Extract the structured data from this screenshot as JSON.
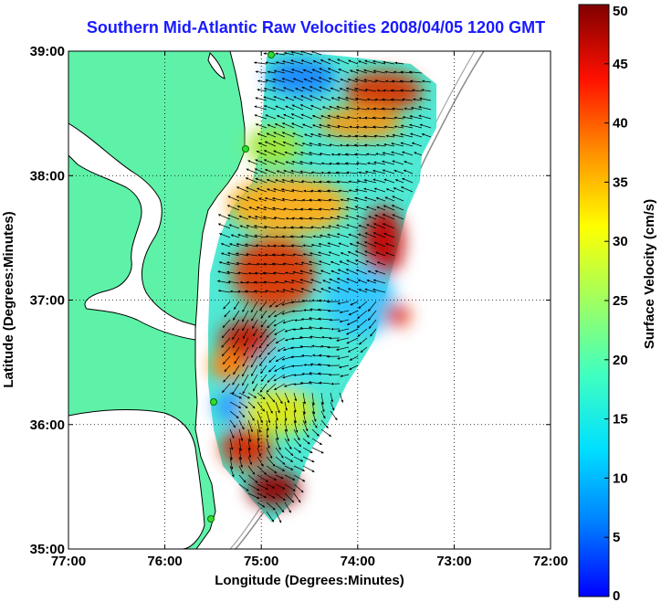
{
  "title": "Southern Mid-Atlantic Raw Velocities 2008/04/05 1200 GMT",
  "map": {
    "x_axis": {
      "label": "Longitude (Degrees:Minutes)",
      "range": [
        -77,
        -72
      ],
      "ticks": [
        {
          "value": -77,
          "label": "77:00"
        },
        {
          "value": -76,
          "label": "76:00"
        },
        {
          "value": -75,
          "label": "75:00"
        },
        {
          "value": -74,
          "label": "74:00"
        },
        {
          "value": -73,
          "label": "73:00"
        },
        {
          "value": -72,
          "label": "72:00"
        }
      ]
    },
    "y_axis": {
      "label": "Latitude (Degrees:Minutes)",
      "range": [
        35,
        39
      ],
      "ticks": [
        {
          "value": 39,
          "label": "39:00"
        },
        {
          "value": 38,
          "label": "38:00"
        },
        {
          "value": 37,
          "label": "37:00"
        },
        {
          "value": 36,
          "label": "36:00"
        },
        {
          "value": 35,
          "label": "35:00"
        }
      ]
    },
    "grid": "dotted",
    "land_color": "#5ef2a8"
  },
  "colorbar": {
    "label": "Surface Velocity (cm/s)",
    "range": [
      0,
      50
    ],
    "ticks": [
      {
        "value": 50,
        "label": "50"
      },
      {
        "value": 45,
        "label": "45"
      },
      {
        "value": 40,
        "label": "40"
      },
      {
        "value": 35,
        "label": "35"
      },
      {
        "value": 30,
        "label": "30"
      },
      {
        "value": 25,
        "label": "25"
      },
      {
        "value": 20,
        "label": "20"
      },
      {
        "value": 15,
        "label": "15"
      },
      {
        "value": 10,
        "label": "10"
      },
      {
        "value": 5,
        "label": "5"
      },
      {
        "value": 0,
        "label": "0"
      }
    ],
    "colormap": "jet"
  }
}
